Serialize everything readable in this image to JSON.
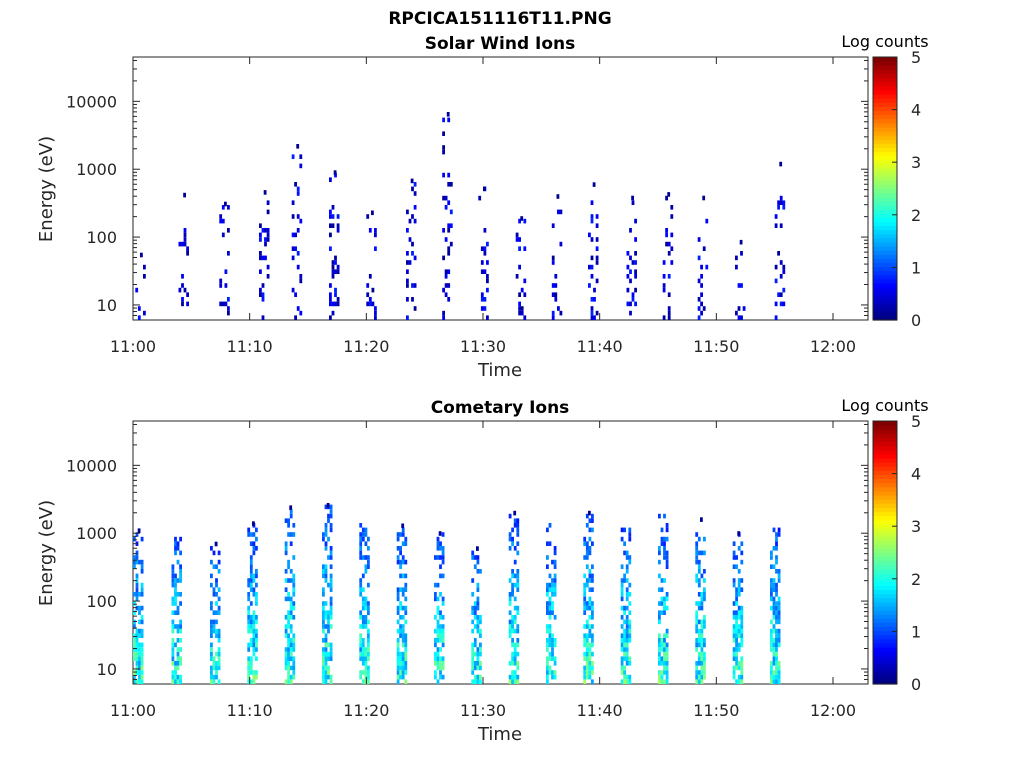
{
  "figure_title": "RPCICA151116T11.PNG",
  "chart_data": [
    {
      "type": "heatmap",
      "title": "Solar Wind Ions",
      "xlabel": "Time",
      "ylabel": "Energy (eV)",
      "x_ticks": [
        "11:00",
        "11:10",
        "11:20",
        "11:30",
        "11:40",
        "11:50",
        "12:00"
      ],
      "x_range_minutes": [
        0,
        63
      ],
      "y_scale": "log",
      "y_ticks": [
        10,
        100,
        1000,
        10000
      ],
      "y_range": [
        6,
        45000
      ],
      "colorbar": {
        "label": "Log counts",
        "range": [
          0,
          5
        ],
        "ticks": [
          0,
          1,
          2,
          3,
          4,
          5
        ],
        "colormap": "jet"
      },
      "sweep_minutes": [
        0.2,
        3.9,
        7.4,
        10.8,
        13.6,
        16.8,
        20.0,
        23.4,
        26.5,
        29.6,
        32.8,
        35.9,
        39.0,
        42.3,
        45.4,
        48.4,
        51.6,
        55.0
      ],
      "max_energy_eV": [
        55,
        420,
        310,
        460,
        2200,
        900,
        230,
        680,
        6500,
        520,
        190,
        400,
        600,
        380,
        430,
        380,
        85,
        1200
      ],
      "intensity": 0.7
    },
    {
      "type": "heatmap",
      "title": "Cometary Ions",
      "xlabel": "Time",
      "ylabel": "Energy (eV)",
      "x_ticks": [
        "11:00",
        "11:10",
        "11:20",
        "11:30",
        "11:40",
        "11:50",
        "12:00"
      ],
      "x_range_minutes": [
        0,
        63
      ],
      "y_scale": "log",
      "y_ticks": [
        10,
        100,
        1000,
        10000
      ],
      "y_range": [
        6,
        45000
      ],
      "colorbar": {
        "label": "Log counts",
        "range": [
          0,
          5
        ],
        "ticks": [
          0,
          1,
          2,
          3,
          4,
          5
        ],
        "colormap": "jet"
      },
      "sweep_minutes": [
        0,
        3.3,
        6.6,
        9.8,
        13.0,
        16.2,
        19.4,
        22.6,
        25.8,
        29.0,
        32.2,
        35.4,
        38.6,
        41.8,
        45.0,
        48.2,
        51.4,
        54.6
      ],
      "max_energy_eV": [
        1100,
        900,
        700,
        1400,
        2400,
        2600,
        1400,
        1300,
        1000,
        600,
        2000,
        1500,
        2000,
        1300,
        1900,
        1600,
        1000,
        1300
      ],
      "intensity": 1.6
    }
  ]
}
